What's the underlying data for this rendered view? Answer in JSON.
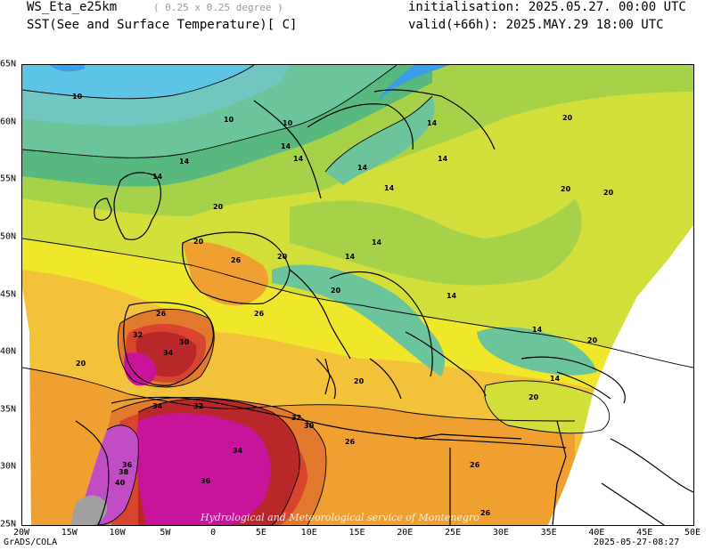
{
  "header": {
    "model": "WS_Eta_e25km",
    "resolution": "( 0.25 x 0.25 degree )",
    "field": "SST(See and Surface Temperature)[ C]",
    "init": "initialisation: 2025.05.27. 00:00 UTC",
    "valid": "valid(+66h): 2025.MAY.29 18:00 UTC"
  },
  "map": {
    "x_ticks": [
      "20W",
      "15W",
      "10W",
      "5W",
      "0",
      "5E",
      "10E",
      "15E",
      "20E",
      "25E",
      "30E",
      "35E",
      "40E",
      "45E",
      "50E"
    ],
    "y_ticks": [
      "65N",
      "60N",
      "55N",
      "50N",
      "45N",
      "40N",
      "35N",
      "30N",
      "25N"
    ],
    "contour_labels": [
      "10",
      "10",
      "10",
      "14",
      "14",
      "14",
      "14",
      "14",
      "14",
      "14",
      "14",
      "14",
      "14",
      "14",
      "14",
      "14",
      "20",
      "20",
      "20",
      "20",
      "20",
      "20",
      "20",
      "20",
      "20",
      "20",
      "20",
      "26",
      "26",
      "26",
      "26",
      "26",
      "26",
      "30",
      "30",
      "32",
      "32",
      "32",
      "34",
      "34",
      "34",
      "36",
      "36",
      "38",
      "40"
    ],
    "watermark": "Hydrological and Meteorological service of Montenegro",
    "colors": {
      "lt8": "#3a9ee8",
      "t10": "#5ec4e6",
      "t12": "#72c6c0",
      "t14": "#6cc59a",
      "t16": "#58b87e",
      "t18": "#a6d24a",
      "t20": "#d2de3a",
      "t22": "#f0e62a",
      "t24": "#f2c23a",
      "t26": "#f0a030",
      "t28": "#e27a2e",
      "t30": "#d8452e",
      "t32": "#b8282a",
      "t34": "#c8149a",
      "t36": "#c24cc4",
      "t40": "#a0a0a0"
    }
  },
  "footer": {
    "left": "GrADS/COLA",
    "right": "2025-05-27-08:27"
  }
}
